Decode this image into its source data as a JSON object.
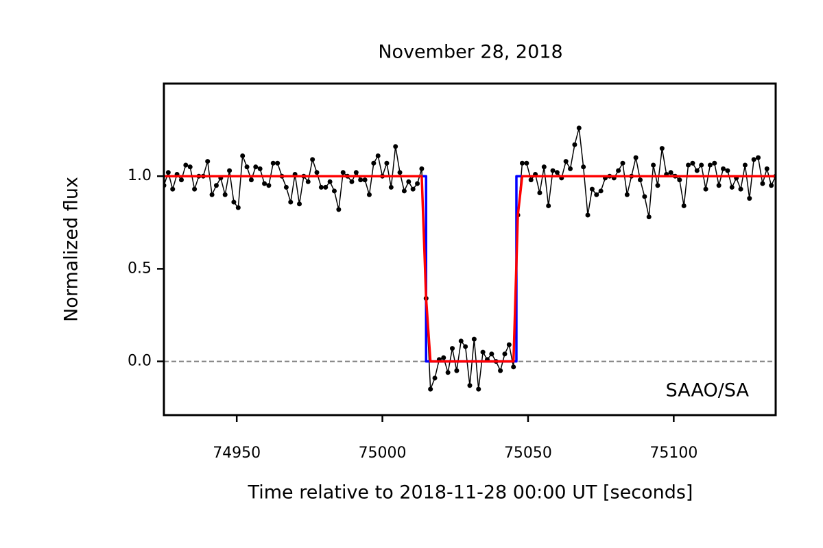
{
  "chart_data": {
    "type": "line",
    "title": "November 28, 2018",
    "xlabel": "Time relative to 2018-11-28 00:00 UT [seconds]",
    "ylabel": "Normalized flux",
    "annotation": "SAAO/SA",
    "xlim": [
      74925,
      75135
    ],
    "ylim": [
      -0.29,
      1.5
    ],
    "xticks": [
      74950,
      75000,
      75050,
      75100
    ],
    "yticks": [
      {
        "value": 0,
        "label": "0.0"
      },
      {
        "value": 0.5,
        "label": "0.5"
      },
      {
        "value": 1,
        "label": "1.0"
      }
    ],
    "hline": 0,
    "hline_color": "#808080",
    "series": [
      {
        "color": "#000000",
        "markers": true,
        "x": [
          74925,
          74926.5,
          74928,
          74929.5,
          74931,
          74932.5,
          74934,
          74935.5,
          74937,
          74938.5,
          74940,
          74941.5,
          74943,
          74944.5,
          74946,
          74947.5,
          74949,
          74950.5,
          74952,
          74953.5,
          74955,
          74956.5,
          74958,
          74959.5,
          74961,
          74962.5,
          74964,
          74965.5,
          74967,
          74968.5,
          74970,
          74971.5,
          74973,
          74974.5,
          74976,
          74977.5,
          74979,
          74980.5,
          74982,
          74983.5,
          74985,
          74986.5,
          74988,
          74989.5,
          74991,
          74992.5,
          74994,
          74995.5,
          74997,
          74998.5,
          75000,
          75001.5,
          75003,
          75004.5,
          75006,
          75007.5,
          75009,
          75010.5,
          75012,
          75013.5,
          75015,
          75016.5,
          75018,
          75019.5,
          75021,
          75022.5,
          75024,
          75025.5,
          75027,
          75028.5,
          75030,
          75031.5,
          75033,
          75034.5,
          75036,
          75037.5,
          75039,
          75040.5,
          75042,
          75043.5,
          75045,
          75046.5,
          75048,
          75049.5,
          75051,
          75052.5,
          75054,
          75055.5,
          75057,
          75058.5,
          75060,
          75061.5,
          75063,
          75064.5,
          75066,
          75067.5,
          75069,
          75070.5,
          75072,
          75073.5,
          75075,
          75076.5,
          75078,
          75079.5,
          75081,
          75082.5,
          75084,
          75085.5,
          75087,
          75088.5,
          75090,
          75091.5,
          75093,
          75094.5,
          75096,
          75097.5,
          75099,
          75100.5,
          75102,
          75103.5,
          75105,
          75106.5,
          75108,
          75109.5,
          75111,
          75112.5,
          75114,
          75115.5,
          75117,
          75118.5,
          75120,
          75121.5,
          75123,
          75124.5,
          75126,
          75127.5,
          75129,
          75130.5,
          75132,
          75133.5,
          75135
        ],
        "values": [
          0.95,
          1.02,
          0.93,
          1.01,
          0.98,
          1.06,
          1.05,
          0.93,
          1.0,
          1.0,
          1.08,
          0.9,
          0.95,
          0.99,
          0.9,
          1.03,
          0.86,
          0.83,
          1.11,
          1.05,
          0.98,
          1.05,
          1.04,
          0.96,
          0.95,
          1.07,
          1.07,
          1.0,
          0.94,
          0.86,
          1.01,
          0.85,
          1.0,
          0.97,
          1.09,
          1.02,
          0.94,
          0.94,
          0.97,
          0.92,
          0.82,
          1.02,
          1.0,
          0.97,
          1.02,
          0.98,
          0.98,
          0.9,
          1.07,
          1.11,
          1.0,
          1.07,
          0.94,
          1.16,
          1.02,
          0.92,
          0.97,
          0.93,
          0.96,
          1.04,
          0.34,
          -0.15,
          -0.09,
          0.01,
          0.02,
          -0.06,
          0.07,
          -0.05,
          0.11,
          0.08,
          -0.13,
          0.12,
          -0.15,
          0.05,
          0.01,
          0.04,
          0.0,
          -0.05,
          0.04,
          0.09,
          -0.03,
          0.79,
          1.07,
          1.07,
          0.98,
          1.01,
          0.91,
          1.05,
          0.84,
          1.03,
          1.02,
          0.99,
          1.08,
          1.04,
          1.17,
          1.26,
          1.05,
          0.79,
          0.93,
          0.9,
          0.92,
          0.99,
          1.0,
          0.99,
          1.03,
          1.07,
          0.9,
          1.0,
          1.1,
          0.98,
          0.89,
          0.78,
          1.06,
          0.95,
          1.15,
          1.01,
          1.02,
          1.0,
          0.98,
          0.84,
          1.06,
          1.07,
          1.03,
          1.06,
          0.93,
          1.06,
          1.07,
          0.95,
          1.04,
          1.03,
          0.94,
          0.99,
          0.93,
          1.06,
          0.88,
          1.09,
          1.1,
          0.96,
          1.04,
          0.95,
          1.0
        ]
      },
      {
        "color": "#0000ff",
        "markers": false,
        "x": [
          74925,
          75015,
          75015,
          75046,
          75046,
          75135
        ],
        "values": [
          1,
          1,
          0,
          0,
          1,
          1
        ]
      },
      {
        "color": "#ff0000",
        "markers": false,
        "x": [
          74925,
          75013.5,
          75015,
          75016.5,
          75045,
          75046.5,
          75048,
          75135
        ],
        "values": [
          1,
          1,
          0.34,
          0,
          0,
          0.79,
          1,
          1
        ]
      }
    ]
  }
}
